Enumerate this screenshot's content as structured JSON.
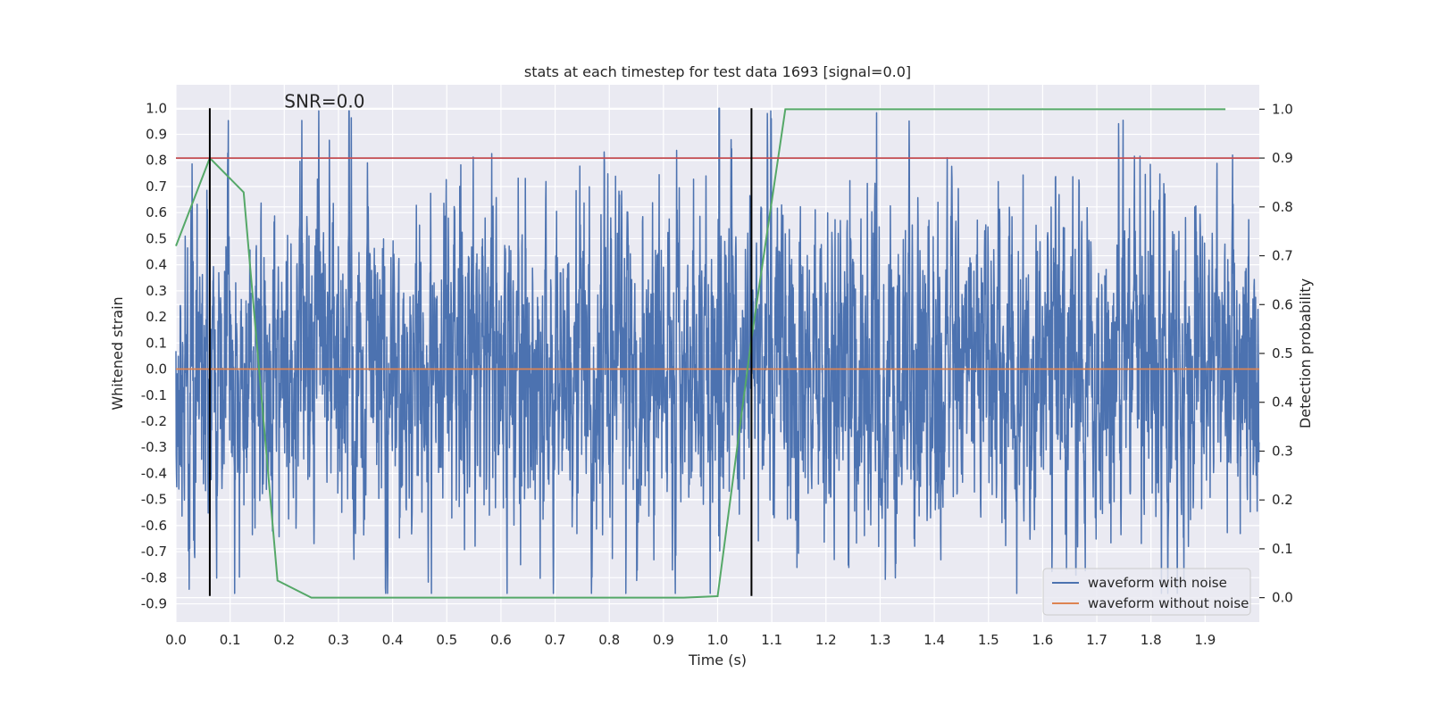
{
  "chart_data": {
    "type": "line",
    "title": "stats at each timestep for test data 1693 [signal=0.0]",
    "xlabel": "Time (s)",
    "ylabel": "Whitened strain",
    "y2label": "Detection probability",
    "annotation": "SNR=0.0",
    "xlim": [
      0.0,
      2.0
    ],
    "ylim": [
      -0.97,
      1.09
    ],
    "y2lim": [
      -0.05,
      1.05
    ],
    "x_ticks": [
      "0.0",
      "0.1",
      "0.2",
      "0.3",
      "0.4",
      "0.5",
      "0.6",
      "0.7",
      "0.8",
      "0.9",
      "1.0",
      "1.1",
      "1.2",
      "1.3",
      "1.4",
      "1.5",
      "1.6",
      "1.7",
      "1.8",
      "1.9"
    ],
    "y_ticks": [
      "1.0",
      "0.9",
      "0.8",
      "0.7",
      "0.6",
      "0.5",
      "0.4",
      "0.3",
      "0.2",
      "0.1",
      "0.0",
      "-0.1",
      "-0.2",
      "-0.3",
      "-0.4",
      "-0.5",
      "-0.6",
      "-0.7",
      "-0.8",
      "-0.9"
    ],
    "y2_ticks": [
      "1.0",
      "0.9",
      "0.8",
      "0.7",
      "0.6",
      "0.5",
      "0.4",
      "0.3",
      "0.2",
      "0.1",
      "0.0"
    ],
    "grid": true,
    "legend_position": "bottom-right",
    "series": [
      {
        "name": "waveform with noise",
        "axis": "left",
        "color": "#4c72b0",
        "description": "dense noisy strain trace spanning roughly -0.87 to 1.0 over 0 to 2 s",
        "sample_rate_hz": 2048,
        "amplitude_std": 0.27
      },
      {
        "name": "waveform without noise",
        "axis": "left",
        "color": "#dd8452",
        "x": [
          0.0,
          2.0
        ],
        "y": [
          0.0,
          0.0
        ]
      },
      {
        "axis": "right",
        "color": "#55a868",
        "x": [
          0.0,
          0.0625,
          0.125,
          0.1875,
          0.25,
          0.3125,
          0.375,
          0.4375,
          0.5,
          0.5625,
          0.625,
          0.6875,
          0.75,
          0.8125,
          0.875,
          0.9375,
          1.0,
          1.0625,
          1.125,
          1.1875,
          1.25,
          1.3125,
          1.375,
          1.4375,
          1.5,
          1.5625,
          1.625,
          1.6875,
          1.75,
          1.8125,
          1.875,
          1.9375
        ],
        "y": [
          0.72,
          0.9,
          0.83,
          0.035,
          0.0,
          0.0,
          0.0,
          0.0,
          0.0,
          0.0,
          0.0,
          0.0,
          0.0,
          0.0,
          0.0,
          0.0,
          0.003,
          0.53,
          1.0,
          1.0,
          1.0,
          1.0,
          1.0,
          1.0,
          1.0,
          1.0,
          1.0,
          1.0,
          1.0,
          1.0,
          1.0,
          1.0
        ]
      }
    ],
    "threshold_line": {
      "axis": "right",
      "value": 0.9,
      "color": "#c44e52"
    },
    "vertical_lines": [
      {
        "x": 0.0625,
        "ymin": -0.87,
        "ymax": 1.0,
        "color": "#000000"
      },
      {
        "x": 1.0625,
        "ymin": -0.87,
        "ymax": 1.0,
        "color": "#000000"
      }
    ],
    "annotation_position": {
      "x": 0.2,
      "y": 1.0
    }
  },
  "colors": {
    "plot_background": "#eaeaf2",
    "grid": "#ffffff",
    "text": "#262626"
  }
}
